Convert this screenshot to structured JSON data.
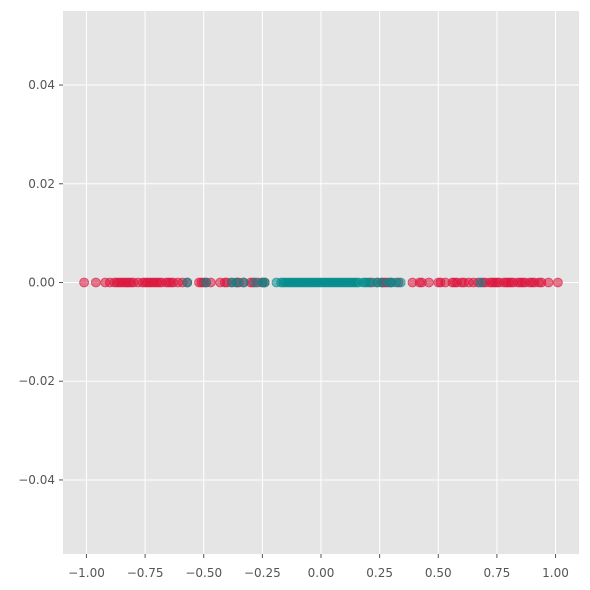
{
  "chart_data": {
    "type": "scatter",
    "title": "",
    "xlabel": "",
    "ylabel": "",
    "xlim": [
      -1.1,
      1.1
    ],
    "ylim": [
      -0.055,
      0.055
    ],
    "x_ticks": [
      -1.0,
      -0.75,
      -0.5,
      -0.25,
      0.0,
      0.25,
      0.5,
      0.75,
      1.0
    ],
    "x_tick_labels": [
      "−1.00",
      "−0.75",
      "−0.50",
      "−0.25",
      "0.00",
      "0.25",
      "0.50",
      "0.75",
      "1.00"
    ],
    "y_ticks": [
      0.04,
      0.02,
      0.0,
      -0.02,
      -0.04
    ],
    "y_tick_labels": [
      "0.04",
      "0.02",
      "0.00",
      "−0.02",
      "−0.04"
    ],
    "grid": true,
    "legend": "none",
    "colors": {
      "background": "#e5e5e5",
      "grid": "#ffffff",
      "series_outer": "#dc143c",
      "series_inner": "#008b8b"
    },
    "series": [
      {
        "color": "#dc143c",
        "opacity": 0.55,
        "x": [
          -1.01,
          -0.96,
          -0.92,
          -0.9,
          -0.88,
          -0.87,
          -0.86,
          -0.85,
          -0.84,
          -0.83,
          -0.82,
          -0.81,
          -0.8,
          -0.78,
          -0.76,
          -0.75,
          -0.74,
          -0.73,
          -0.72,
          -0.71,
          -0.7,
          -0.69,
          -0.68,
          -0.66,
          -0.65,
          -0.64,
          -0.63,
          -0.61,
          -0.59,
          -0.57,
          -0.52,
          -0.51,
          -0.5,
          -0.49,
          -0.47,
          -0.43,
          -0.41,
          -0.4,
          -0.38,
          -0.36,
          -0.35,
          -0.33,
          -0.3,
          -0.29,
          -0.27,
          -0.25,
          -0.24,
          0.21,
          0.24,
          0.26,
          0.27,
          0.28,
          0.3,
          0.33,
          0.39,
          0.42,
          0.43,
          0.46,
          0.5,
          0.51,
          0.53,
          0.56,
          0.57,
          0.58,
          0.6,
          0.61,
          0.63,
          0.65,
          0.67,
          0.69,
          0.7,
          0.72,
          0.73,
          0.74,
          0.75,
          0.76,
          0.78,
          0.79,
          0.8,
          0.81,
          0.82,
          0.84,
          0.85,
          0.86,
          0.87,
          0.89,
          0.9,
          0.91,
          0.93,
          0.94,
          0.97,
          1.01
        ],
        "y": [
          0,
          0,
          0,
          0,
          0,
          0,
          0,
          0,
          0,
          0,
          0,
          0,
          0,
          0,
          0,
          0,
          0,
          0,
          0,
          0,
          0,
          0,
          0,
          0,
          0,
          0,
          0,
          0,
          0,
          0,
          0,
          0,
          0,
          0,
          0,
          0,
          0,
          0,
          0,
          0,
          0,
          0,
          0,
          0,
          0,
          0,
          0,
          0,
          0,
          0,
          0,
          0,
          0,
          0,
          0,
          0,
          0,
          0,
          0,
          0,
          0,
          0,
          0,
          0,
          0,
          0,
          0,
          0,
          0,
          0,
          0,
          0,
          0,
          0,
          0,
          0,
          0,
          0,
          0,
          0,
          0,
          0,
          0,
          0,
          0,
          0,
          0,
          0,
          0,
          0,
          0,
          0
        ]
      },
      {
        "color": "#008b8b",
        "opacity": 0.55,
        "x": [
          -0.57,
          -0.49,
          -0.38,
          -0.36,
          -0.33,
          -0.28,
          -0.25,
          -0.24,
          -0.19,
          -0.17,
          -0.16,
          -0.15,
          -0.14,
          -0.13,
          -0.12,
          -0.11,
          -0.1,
          -0.09,
          -0.08,
          -0.07,
          -0.06,
          -0.05,
          -0.04,
          -0.03,
          -0.02,
          -0.01,
          0.0,
          0.01,
          0.02,
          0.03,
          0.04,
          0.05,
          0.06,
          0.07,
          0.08,
          0.09,
          0.1,
          0.11,
          0.12,
          0.13,
          0.14,
          0.15,
          0.16,
          0.18,
          0.19,
          0.2,
          0.22,
          0.24,
          0.26,
          0.29,
          0.3,
          0.32,
          0.34,
          0.68
        ],
        "y": [
          0,
          0,
          0,
          0,
          0,
          0,
          0,
          0,
          0,
          0,
          0,
          0,
          0,
          0,
          0,
          0,
          0,
          0,
          0,
          0,
          0,
          0,
          0,
          0,
          0,
          0,
          0,
          0,
          0,
          0,
          0,
          0,
          0,
          0,
          0,
          0,
          0,
          0,
          0,
          0,
          0,
          0,
          0,
          0,
          0,
          0,
          0,
          0,
          0,
          0,
          0,
          0,
          0,
          0
        ]
      }
    ]
  }
}
